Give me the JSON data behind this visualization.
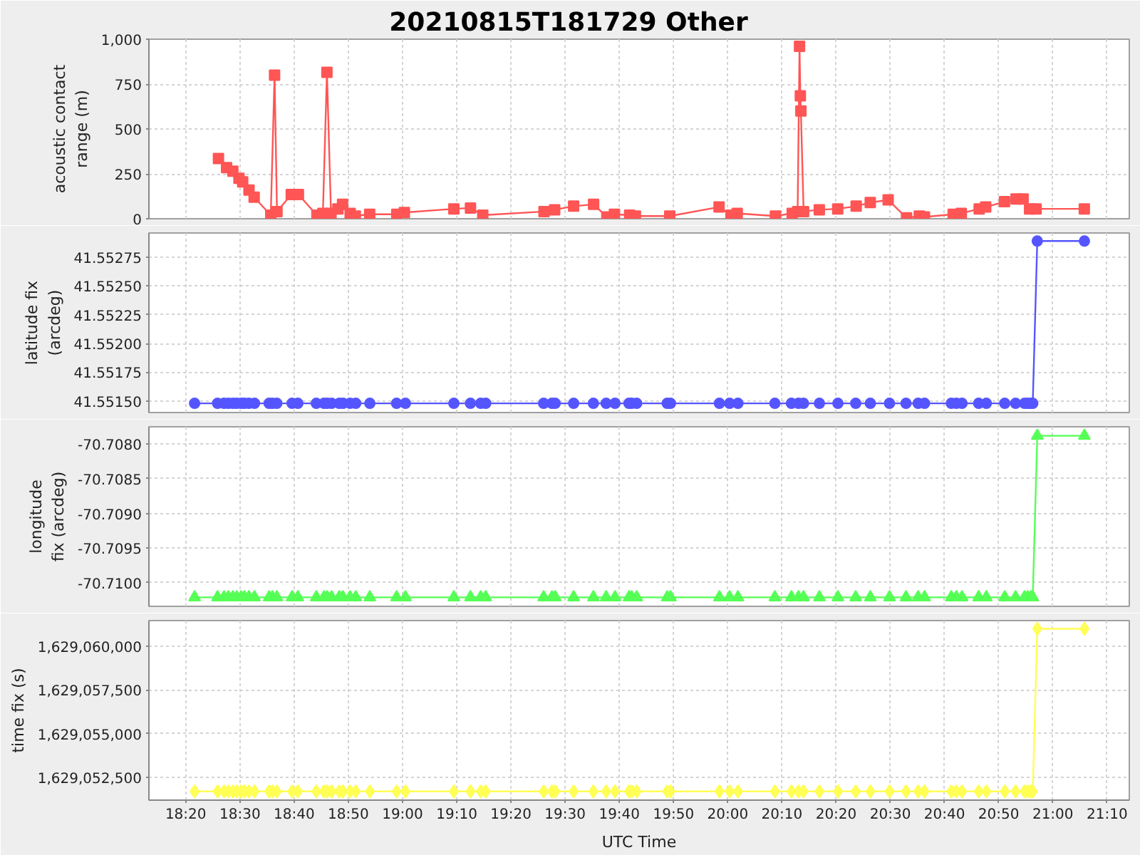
{
  "chart_data": [
    {
      "type": "line",
      "title": "20210815T181729 Other",
      "ylabel": "acoustic contact range (m)",
      "marker": "square",
      "grid": true,
      "tick_labels": "y",
      "xlim": [
        "2021-08-15T18:13:12",
        "2021-08-15T21:14:06"
      ],
      "xticks": [
        {
          "value": "2021-08-15T18:20",
          "label": null
        },
        {
          "value": "2021-08-15T18:30",
          "label": null
        },
        {
          "value": "2021-08-15T18:40",
          "label": null
        },
        {
          "value": "2021-08-15T18:50",
          "label": null
        },
        {
          "value": "2021-08-15T19:00",
          "label": null
        },
        {
          "value": "2021-08-15T19:10",
          "label": null
        },
        {
          "value": "2021-08-15T19:20",
          "label": null
        },
        {
          "value": "2021-08-15T19:30",
          "label": null
        },
        {
          "value": "2021-08-15T19:40",
          "label": null
        },
        {
          "value": "2021-08-15T19:50",
          "label": null
        },
        {
          "value": "2021-08-15T20:00",
          "label": null
        },
        {
          "value": "2021-08-15T20:10",
          "label": null
        },
        {
          "value": "2021-08-15T20:20",
          "label": null
        },
        {
          "value": "2021-08-15T20:30",
          "label": null
        },
        {
          "value": "2021-08-15T20:40",
          "label": null
        },
        {
          "value": "2021-08-15T20:50",
          "label": null
        },
        {
          "value": "2021-08-15T21:00",
          "label": null
        },
        {
          "value": "2021-08-15T21:10",
          "label": null
        }
      ],
      "ylim": [
        0,
        1000
      ],
      "yticks": [
        0,
        250,
        500,
        750,
        {
          "value": 1000,
          "label": "1,000"
        }
      ],
      "x": [
        "2021-08-15T18:26:02",
        "2021-08-15T18:27:32",
        "2021-08-15T18:28:41",
        "2021-08-15T18:29:49",
        "2021-08-15T18:30:30",
        "2021-08-15T18:31:40",
        "2021-08-15T18:32:37",
        "2021-08-15T18:35:41",
        "2021-08-15T18:36:23",
        "2021-08-15T18:36:50",
        "2021-08-15T18:39:28",
        "2021-08-15T18:40:47",
        "2021-08-15T18:44:12",
        "2021-08-15T18:45:18",
        "2021-08-15T18:46:03",
        "2021-08-15T18:46:48",
        "2021-08-15T18:48:04",
        "2021-08-15T18:48:56",
        "2021-08-15T18:50:20",
        "2021-08-15T18:51:17",
        "2021-08-15T18:53:56",
        "2021-08-15T18:58:56",
        "2021-08-15T19:00:20",
        "2021-08-15T19:09:28",
        "2021-08-15T19:12:32",
        "2021-08-15T19:14:48",
        "2021-08-15T19:26:06",
        "2021-08-15T19:28:04",
        "2021-08-15T19:31:34",
        "2021-08-15T19:35:15",
        "2021-08-15T19:37:42",
        "2021-08-15T19:39:06",
        "2021-08-15T19:41:54",
        "2021-08-15T19:42:58",
        "2021-08-15T19:49:18",
        "2021-08-15T19:58:24",
        "2021-08-15T20:00:36",
        "2021-08-15T20:01:45",
        "2021-08-15T20:08:48",
        "2021-08-15T20:11:54",
        "2021-08-15T20:12:54",
        "2021-08-15T20:13:15",
        "2021-08-15T20:13:24",
        "2021-08-15T20:13:30",
        "2021-08-15T20:14:00",
        "2021-08-15T20:16:54",
        "2021-08-15T20:20:18",
        "2021-08-15T20:23:42",
        "2021-08-15T20:26:18",
        "2021-08-15T20:29:36",
        "2021-08-15T20:33:00",
        "2021-08-15T20:35:21",
        "2021-08-15T20:36:18",
        "2021-08-15T20:41:36",
        "2021-08-15T20:43:06",
        "2021-08-15T20:46:24",
        "2021-08-15T20:47:36",
        "2021-08-15T20:51:04",
        "2021-08-15T20:53:12",
        "2021-08-15T20:54:30",
        "2021-08-15T20:55:42",
        "2021-08-15T20:56:54",
        "2021-08-15T21:05:48"
      ],
      "series": [
        {
          "color": "#ff5555",
          "values": [
            335,
            285,
            265,
            225,
            205,
            160,
            120,
            20,
            800,
            40,
            135,
            135,
            20,
            30,
            815,
            30,
            55,
            80,
            30,
            15,
            25,
            25,
            35,
            55,
            60,
            20,
            40,
            50,
            70,
            80,
            10,
            25,
            20,
            15,
            15,
            65,
            20,
            30,
            15,
            30,
            40,
            960,
            685,
            600,
            40,
            50,
            55,
            70,
            90,
            105,
            5,
            15,
            10,
            25,
            30,
            55,
            65,
            95,
            110,
            110,
            55,
            55,
            55
          ]
        }
      ]
    },
    {
      "type": "line",
      "ylabel": "latitude fix (arcdeg)",
      "marker": "circle",
      "grid": true,
      "tick_labels": "y",
      "xlim": [
        "2021-08-15T18:13:12",
        "2021-08-15T21:14:06"
      ],
      "xticks": [
        {
          "value": "2021-08-15T18:20",
          "label": null
        },
        {
          "value": "2021-08-15T18:30",
          "label": null
        },
        {
          "value": "2021-08-15T18:40",
          "label": null
        },
        {
          "value": "2021-08-15T18:50",
          "label": null
        },
        {
          "value": "2021-08-15T19:00",
          "label": null
        },
        {
          "value": "2021-08-15T19:10",
          "label": null
        },
        {
          "value": "2021-08-15T19:20",
          "label": null
        },
        {
          "value": "2021-08-15T19:30",
          "label": null
        },
        {
          "value": "2021-08-15T19:40",
          "label": null
        },
        {
          "value": "2021-08-15T19:50",
          "label": null
        },
        {
          "value": "2021-08-15T20:00",
          "label": null
        },
        {
          "value": "2021-08-15T20:10",
          "label": null
        },
        {
          "value": "2021-08-15T20:20",
          "label": null
        },
        {
          "value": "2021-08-15T20:30",
          "label": null
        },
        {
          "value": "2021-08-15T20:40",
          "label": null
        },
        {
          "value": "2021-08-15T20:50",
          "label": null
        },
        {
          "value": "2021-08-15T21:00",
          "label": null
        },
        {
          "value": "2021-08-15T21:10",
          "label": null
        }
      ],
      "ylim": [
        41.5514,
        41.55296
      ],
      "yticks": [
        {
          "value": 41.5515,
          "label": "41.55150"
        },
        {
          "value": 41.55175,
          "label": "41.55175"
        },
        {
          "value": 41.552,
          "label": "41.55200"
        },
        {
          "value": 41.55225,
          "label": "41.55225"
        },
        {
          "value": 41.5525,
          "label": "41.55250"
        },
        {
          "value": 41.55275,
          "label": "41.55275"
        }
      ],
      "x": [
        "2021-08-15T18:21:38",
        "2021-08-15T18:25:52",
        "2021-08-15T18:27:03",
        "2021-08-15T18:27:52",
        "2021-08-15T18:28:42",
        "2021-08-15T18:29:24",
        "2021-08-15T18:30:13",
        "2021-08-15T18:30:49",
        "2021-08-15T18:31:38",
        "2021-08-15T18:32:41",
        "2021-08-15T18:35:23",
        "2021-08-15T18:35:59",
        "2021-08-15T18:36:48",
        "2021-08-15T18:39:37",
        "2021-08-15T18:40:41",
        "2021-08-15T18:44:05",
        "2021-08-15T18:45:30",
        "2021-08-15T18:46:05",
        "2021-08-15T18:46:55",
        "2021-08-15T18:48:19",
        "2021-08-15T18:49:01",
        "2021-08-15T18:50:19",
        "2021-08-15T18:51:22",
        "2021-08-15T18:53:58",
        "2021-08-15T18:58:54",
        "2021-08-15T19:00:32",
        "2021-08-15T19:09:28",
        "2021-08-15T19:12:32",
        "2021-08-15T19:14:25",
        "2021-08-15T19:15:21",
        "2021-08-15T19:26:02",
        "2021-08-15T19:27:34",
        "2021-08-15T19:28:10",
        "2021-08-15T19:31:34",
        "2021-08-15T19:35:13",
        "2021-08-15T19:37:34",
        "2021-08-15T19:39:12",
        "2021-08-15T19:41:47",
        "2021-08-15T19:42:16",
        "2021-08-15T19:43:12",
        "2021-08-15T19:48:50",
        "2021-08-15T19:49:26",
        "2021-08-15T19:58:28",
        "2021-08-15T20:00:21",
        "2021-08-15T20:01:53",
        "2021-08-15T20:08:42",
        "2021-08-15T20:11:45",
        "2021-08-15T20:13:03",
        "2021-08-15T20:13:59",
        "2021-08-15T20:16:55",
        "2021-08-15T20:20:20",
        "2021-08-15T20:23:37",
        "2021-08-15T20:26:19",
        "2021-08-15T20:29:51",
        "2021-08-15T20:32:54",
        "2021-08-15T20:35:08",
        "2021-08-15T20:36:19",
        "2021-08-15T20:41:15",
        "2021-08-15T20:42:11",
        "2021-08-15T20:43:14",
        "2021-08-15T20:46:18",
        "2021-08-15T20:47:43",
        "2021-08-15T20:51:07",
        "2021-08-15T20:53:07",
        "2021-08-15T20:54:46",
        "2021-08-15T20:55:22",
        "2021-08-15T20:55:56",
        "2021-08-15T20:56:17",
        "2021-08-15T20:57:07",
        "2021-08-15T21:05:49"
      ],
      "series": [
        {
          "color": "#5555ff",
          "values": [
            41.55148,
            41.55148,
            41.55148,
            41.55148,
            41.55148,
            41.55148,
            41.55148,
            41.55148,
            41.55148,
            41.55148,
            41.55148,
            41.55148,
            41.55148,
            41.55148,
            41.55148,
            41.55148,
            41.55148,
            41.55148,
            41.55148,
            41.55148,
            41.55148,
            41.55148,
            41.55148,
            41.55148,
            41.55148,
            41.55148,
            41.55148,
            41.55148,
            41.55148,
            41.55148,
            41.55148,
            41.55148,
            41.55148,
            41.55148,
            41.55148,
            41.55148,
            41.55148,
            41.55148,
            41.55148,
            41.55148,
            41.55148,
            41.55148,
            41.55148,
            41.55148,
            41.55148,
            41.55148,
            41.55148,
            41.55148,
            41.55148,
            41.55148,
            41.55148,
            41.55148,
            41.55148,
            41.55148,
            41.55148,
            41.55148,
            41.55148,
            41.55148,
            41.55148,
            41.55148,
            41.55148,
            41.55148,
            41.55148,
            41.55148,
            41.55148,
            41.55148,
            41.55148,
            41.55148,
            41.55289,
            41.55289
          ]
        }
      ]
    },
    {
      "type": "line",
      "ylabel": "longitude fix (arcdeg)",
      "marker": "triangle",
      "grid": true,
      "tick_labels": "y",
      "xlim": [
        "2021-08-15T18:13:12",
        "2021-08-15T21:14:06"
      ],
      "xticks": [
        {
          "value": "2021-08-15T18:20",
          "label": null
        },
        {
          "value": "2021-08-15T18:30",
          "label": null
        },
        {
          "value": "2021-08-15T18:40",
          "label": null
        },
        {
          "value": "2021-08-15T18:50",
          "label": null
        },
        {
          "value": "2021-08-15T19:00",
          "label": null
        },
        {
          "value": "2021-08-15T19:10",
          "label": null
        },
        {
          "value": "2021-08-15T19:20",
          "label": null
        },
        {
          "value": "2021-08-15T19:30",
          "label": null
        },
        {
          "value": "2021-08-15T19:40",
          "label": null
        },
        {
          "value": "2021-08-15T19:50",
          "label": null
        },
        {
          "value": "2021-08-15T20:00",
          "label": null
        },
        {
          "value": "2021-08-15T20:10",
          "label": null
        },
        {
          "value": "2021-08-15T20:20",
          "label": null
        },
        {
          "value": "2021-08-15T20:30",
          "label": null
        },
        {
          "value": "2021-08-15T20:40",
          "label": null
        },
        {
          "value": "2021-08-15T20:50",
          "label": null
        },
        {
          "value": "2021-08-15T21:00",
          "label": null
        },
        {
          "value": "2021-08-15T21:10",
          "label": null
        }
      ],
      "ylim": [
        -70.71034,
        -70.70775
      ],
      "yticks": [
        {
          "value": -70.71,
          "label": "-70.7100"
        },
        {
          "value": -70.7095,
          "label": "-70.7095"
        },
        {
          "value": -70.709,
          "label": "-70.7090"
        },
        {
          "value": -70.7085,
          "label": "-70.7085"
        },
        {
          "value": -70.708,
          "label": "-70.7080"
        }
      ],
      "x": [
        "2021-08-15T18:21:38",
        "2021-08-15T18:25:52",
        "2021-08-15T18:27:03",
        "2021-08-15T18:27:52",
        "2021-08-15T18:28:42",
        "2021-08-15T18:29:24",
        "2021-08-15T18:30:13",
        "2021-08-15T18:30:49",
        "2021-08-15T18:31:38",
        "2021-08-15T18:32:41",
        "2021-08-15T18:35:23",
        "2021-08-15T18:35:59",
        "2021-08-15T18:36:48",
        "2021-08-15T18:39:37",
        "2021-08-15T18:40:41",
        "2021-08-15T18:44:05",
        "2021-08-15T18:45:30",
        "2021-08-15T18:46:05",
        "2021-08-15T18:46:55",
        "2021-08-15T18:48:19",
        "2021-08-15T18:49:01",
        "2021-08-15T18:50:19",
        "2021-08-15T18:51:22",
        "2021-08-15T18:53:58",
        "2021-08-15T18:58:54",
        "2021-08-15T19:00:32",
        "2021-08-15T19:09:28",
        "2021-08-15T19:12:32",
        "2021-08-15T19:14:25",
        "2021-08-15T19:15:21",
        "2021-08-15T19:26:02",
        "2021-08-15T19:27:34",
        "2021-08-15T19:28:10",
        "2021-08-15T19:31:34",
        "2021-08-15T19:35:13",
        "2021-08-15T19:37:34",
        "2021-08-15T19:39:12",
        "2021-08-15T19:41:47",
        "2021-08-15T19:42:16",
        "2021-08-15T19:43:12",
        "2021-08-15T19:48:50",
        "2021-08-15T19:49:26",
        "2021-08-15T19:58:28",
        "2021-08-15T20:00:21",
        "2021-08-15T20:01:53",
        "2021-08-15T20:08:42",
        "2021-08-15T20:11:45",
        "2021-08-15T20:13:03",
        "2021-08-15T20:13:59",
        "2021-08-15T20:16:55",
        "2021-08-15T20:20:20",
        "2021-08-15T20:23:37",
        "2021-08-15T20:26:19",
        "2021-08-15T20:29:51",
        "2021-08-15T20:32:54",
        "2021-08-15T20:35:08",
        "2021-08-15T20:36:19",
        "2021-08-15T20:41:15",
        "2021-08-15T20:42:11",
        "2021-08-15T20:43:14",
        "2021-08-15T20:46:18",
        "2021-08-15T20:47:43",
        "2021-08-15T20:51:07",
        "2021-08-15T20:53:07",
        "2021-08-15T20:54:46",
        "2021-08-15T20:55:22",
        "2021-08-15T20:55:56",
        "2021-08-15T20:56:17",
        "2021-08-15T20:57:07",
        "2021-08-15T21:05:49"
      ],
      "series": [
        {
          "color": "#55ff55",
          "values": [
            -70.71021,
            -70.71021,
            -70.71021,
            -70.71021,
            -70.71021,
            -70.71021,
            -70.71021,
            -70.71021,
            -70.71021,
            -70.71021,
            -70.71021,
            -70.71021,
            -70.71021,
            -70.71021,
            -70.71021,
            -70.71021,
            -70.71021,
            -70.71021,
            -70.71021,
            -70.71021,
            -70.71021,
            -70.71021,
            -70.71021,
            -70.71021,
            -70.71021,
            -70.71021,
            -70.71021,
            -70.71021,
            -70.71021,
            -70.71021,
            -70.71021,
            -70.71021,
            -70.71021,
            -70.71021,
            -70.71021,
            -70.71021,
            -70.71021,
            -70.71021,
            -70.71021,
            -70.71021,
            -70.71021,
            -70.71021,
            -70.71021,
            -70.71021,
            -70.71021,
            -70.71021,
            -70.71021,
            -70.71021,
            -70.71021,
            -70.71021,
            -70.71021,
            -70.71021,
            -70.71021,
            -70.71021,
            -70.71021,
            -70.71021,
            -70.71021,
            -70.71021,
            -70.71021,
            -70.71021,
            -70.71021,
            -70.71021,
            -70.71021,
            -70.71021,
            -70.71021,
            -70.71021,
            -70.71021,
            -70.71021,
            -70.70788,
            -70.70788
          ]
        }
      ]
    },
    {
      "type": "line",
      "ylabel": "time fix (s)",
      "xlabel": "UTC Time",
      "marker": "diamond",
      "grid": true,
      "xlim": [
        "2021-08-15T18:13:12",
        "2021-08-15T21:14:06"
      ],
      "xticks": [
        {
          "value": "2021-08-15T18:20",
          "label": "18:20"
        },
        {
          "value": "2021-08-15T18:30",
          "label": "18:30"
        },
        {
          "value": "2021-08-15T18:40",
          "label": "18:40"
        },
        {
          "value": "2021-08-15T18:50",
          "label": "18:50"
        },
        {
          "value": "2021-08-15T19:00",
          "label": "19:00"
        },
        {
          "value": "2021-08-15T19:10",
          "label": "19:10"
        },
        {
          "value": "2021-08-15T19:20",
          "label": "19:20"
        },
        {
          "value": "2021-08-15T19:30",
          "label": "19:30"
        },
        {
          "value": "2021-08-15T19:40",
          "label": "19:40"
        },
        {
          "value": "2021-08-15T19:50",
          "label": "19:50"
        },
        {
          "value": "2021-08-15T20:00",
          "label": "20:00"
        },
        {
          "value": "2021-08-15T20:10",
          "label": "20:10"
        },
        {
          "value": "2021-08-15T20:20",
          "label": "20:20"
        },
        {
          "value": "2021-08-15T20:30",
          "label": "20:30"
        },
        {
          "value": "2021-08-15T20:40",
          "label": "20:40"
        },
        {
          "value": "2021-08-15T20:50",
          "label": "20:50"
        },
        {
          "value": "2021-08-15T21:00",
          "label": "21:00"
        },
        {
          "value": "2021-08-15T21:10",
          "label": "21:10"
        }
      ],
      "ylim": [
        1629051200,
        1629061470
      ],
      "yticks": [
        {
          "value": 1629052500,
          "label": "1,629,052,500"
        },
        {
          "value": 1629055000,
          "label": "1,629,055,000"
        },
        {
          "value": 1629057500,
          "label": "1,629,057,500"
        },
        {
          "value": 1629060000,
          "label": "1,629,060,000"
        }
      ],
      "x": [
        "2021-08-15T18:21:38",
        "2021-08-15T18:25:52",
        "2021-08-15T18:27:03",
        "2021-08-15T18:27:52",
        "2021-08-15T18:28:42",
        "2021-08-15T18:29:24",
        "2021-08-15T18:30:13",
        "2021-08-15T18:30:49",
        "2021-08-15T18:31:38",
        "2021-08-15T18:32:41",
        "2021-08-15T18:35:23",
        "2021-08-15T18:35:59",
        "2021-08-15T18:36:48",
        "2021-08-15T18:39:37",
        "2021-08-15T18:40:41",
        "2021-08-15T18:44:05",
        "2021-08-15T18:45:30",
        "2021-08-15T18:46:05",
        "2021-08-15T18:46:55",
        "2021-08-15T18:48:19",
        "2021-08-15T18:49:01",
        "2021-08-15T18:50:19",
        "2021-08-15T18:51:22",
        "2021-08-15T18:53:58",
        "2021-08-15T18:58:54",
        "2021-08-15T19:00:32",
        "2021-08-15T19:09:28",
        "2021-08-15T19:12:32",
        "2021-08-15T19:14:25",
        "2021-08-15T19:15:21",
        "2021-08-15T19:26:02",
        "2021-08-15T19:27:34",
        "2021-08-15T19:28:10",
        "2021-08-15T19:31:34",
        "2021-08-15T19:35:13",
        "2021-08-15T19:37:34",
        "2021-08-15T19:39:12",
        "2021-08-15T19:41:47",
        "2021-08-15T19:42:16",
        "2021-08-15T19:43:12",
        "2021-08-15T19:48:50",
        "2021-08-15T19:49:26",
        "2021-08-15T19:58:28",
        "2021-08-15T20:00:21",
        "2021-08-15T20:01:53",
        "2021-08-15T20:08:42",
        "2021-08-15T20:11:45",
        "2021-08-15T20:13:03",
        "2021-08-15T20:13:59",
        "2021-08-15T20:16:55",
        "2021-08-15T20:20:20",
        "2021-08-15T20:23:37",
        "2021-08-15T20:26:19",
        "2021-08-15T20:29:51",
        "2021-08-15T20:32:54",
        "2021-08-15T20:35:08",
        "2021-08-15T20:36:19",
        "2021-08-15T20:41:15",
        "2021-08-15T20:42:11",
        "2021-08-15T20:43:14",
        "2021-08-15T20:46:18",
        "2021-08-15T20:47:43",
        "2021-08-15T20:51:07",
        "2021-08-15T20:53:07",
        "2021-08-15T20:54:46",
        "2021-08-15T20:55:22",
        "2021-08-15T20:55:56",
        "2021-08-15T20:56:17",
        "2021-08-15T20:57:07",
        "2021-08-15T21:05:49"
      ],
      "series": [
        {
          "color": "#ffff55",
          "values": [
            1629051700,
            1629051700,
            1629051700,
            1629051700,
            1629051700,
            1629051700,
            1629051700,
            1629051700,
            1629051700,
            1629051700,
            1629051700,
            1629051700,
            1629051700,
            1629051700,
            1629051700,
            1629051700,
            1629051700,
            1629051700,
            1629051700,
            1629051700,
            1629051700,
            1629051700,
            1629051700,
            1629051700,
            1629051700,
            1629051700,
            1629051700,
            1629051700,
            1629051700,
            1629051700,
            1629051700,
            1629051700,
            1629051700,
            1629051700,
            1629051700,
            1629051700,
            1629051700,
            1629051700,
            1629051700,
            1629051700,
            1629051700,
            1629051700,
            1629051700,
            1629051700,
            1629051700,
            1629051700,
            1629051700,
            1629051700,
            1629051700,
            1629051700,
            1629051700,
            1629051700,
            1629051700,
            1629051700,
            1629051700,
            1629051700,
            1629051700,
            1629051700,
            1629051700,
            1629051700,
            1629051700,
            1629051700,
            1629051700,
            1629051700,
            1629051700,
            1629051700,
            1629051700,
            1629051700,
            1629061000,
            1629061000
          ]
        }
      ]
    }
  ]
}
